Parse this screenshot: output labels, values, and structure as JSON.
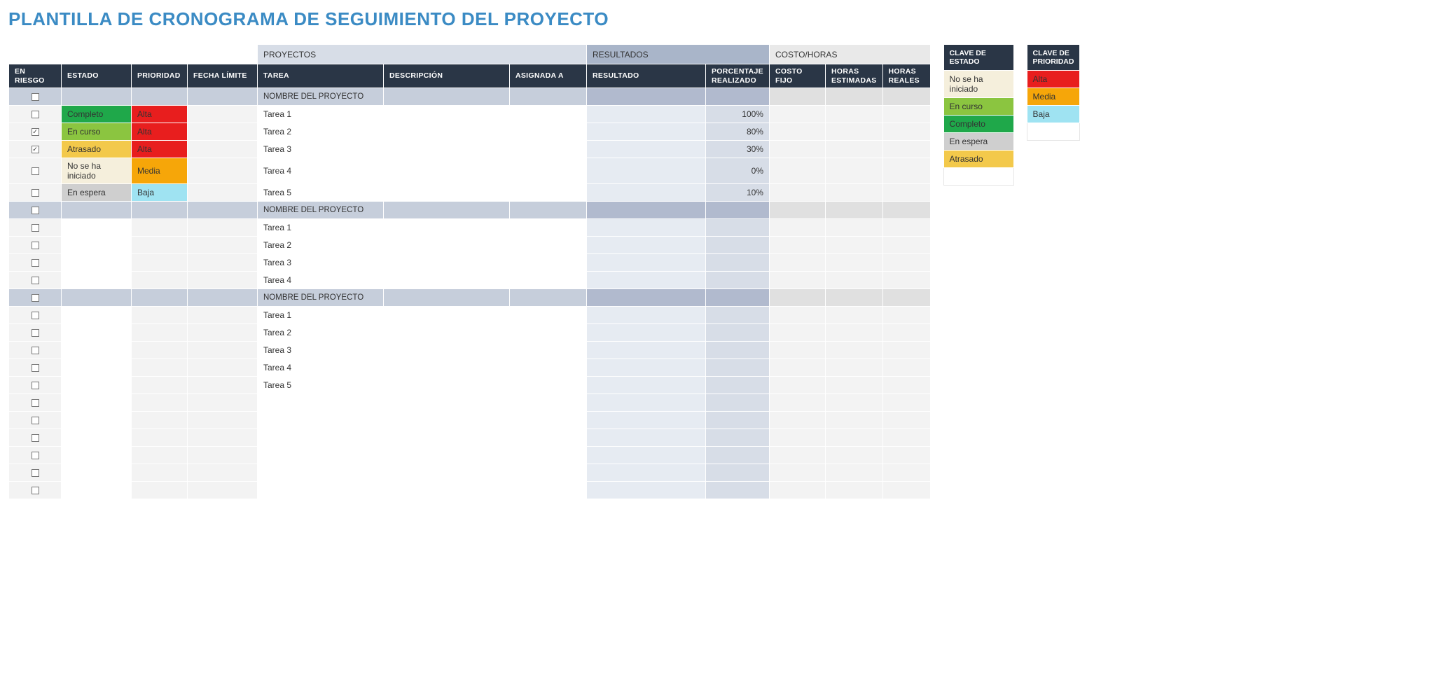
{
  "title": "PLANTILLA DE CRONOGRAMA DE SEGUIMIENTO DEL PROYECTO",
  "sections": {
    "projects": "PROYECTOS",
    "results": "RESULTADOS",
    "cost": "COSTO/HORAS"
  },
  "columns": {
    "risk": "EN RIESGO",
    "status": "ESTADO",
    "priority": "PRIORIDAD",
    "deadline": "FECHA LÍMITE",
    "task": "TAREA",
    "description": "DESCRIPCIÓN",
    "assigned": "ASIGNADA A",
    "result": "RESULTADO",
    "pct": "PORCENTAJE REALIZADO",
    "cost": "COSTO FIJO",
    "hest": "HORAS ESTIMADAS",
    "hreal": "HORAS REALES"
  },
  "status_colors": {
    "Completo": "#1fa84a",
    "En curso": "#8bc540",
    "Atrasado": "#f3c94b",
    "No se ha iniciado": "#f5efdc",
    "En espera": "#cfcfcf"
  },
  "priority_colors": {
    "Alta": "#e81e1e",
    "Media": "#f6a609",
    "Baja": "#9fe3f2"
  },
  "rows": [
    {
      "type": "group",
      "task": "NOMBRE DEL PROYECTO",
      "checked": false
    },
    {
      "type": "body",
      "checked": false,
      "status": "Completo",
      "priority": "Alta",
      "task": "Tarea 1",
      "pct": "100%"
    },
    {
      "type": "body",
      "checked": true,
      "status": "En curso",
      "priority": "Alta",
      "task": "Tarea 2",
      "pct": "80%"
    },
    {
      "type": "body",
      "checked": true,
      "status": "Atrasado",
      "priority": "Alta",
      "task": "Tarea 3",
      "pct": "30%"
    },
    {
      "type": "body",
      "checked": false,
      "status": "No se ha iniciado",
      "priority": "Media",
      "task": "Tarea 4",
      "pct": "0%"
    },
    {
      "type": "body",
      "checked": false,
      "status": "En espera",
      "priority": "Baja",
      "task": "Tarea 5",
      "pct": "10%"
    },
    {
      "type": "group",
      "task": "NOMBRE DEL PROYECTO",
      "checked": false
    },
    {
      "type": "body",
      "checked": false,
      "task": "Tarea 1"
    },
    {
      "type": "body",
      "checked": false,
      "task": "Tarea 2"
    },
    {
      "type": "body",
      "checked": false,
      "task": "Tarea 3"
    },
    {
      "type": "body",
      "checked": false,
      "task": "Tarea 4"
    },
    {
      "type": "group",
      "task": "NOMBRE DEL PROYECTO",
      "checked": false
    },
    {
      "type": "body",
      "checked": false,
      "task": "Tarea 1"
    },
    {
      "type": "body",
      "checked": false,
      "task": "Tarea 2"
    },
    {
      "type": "body",
      "checked": false,
      "task": "Tarea 3"
    },
    {
      "type": "body",
      "checked": false,
      "task": "Tarea 4"
    },
    {
      "type": "body",
      "checked": false,
      "task": "Tarea 5"
    },
    {
      "type": "body",
      "checked": false
    },
    {
      "type": "body",
      "checked": false
    },
    {
      "type": "body",
      "checked": false
    },
    {
      "type": "body",
      "checked": false
    },
    {
      "type": "body",
      "checked": false
    },
    {
      "type": "body",
      "checked": false
    }
  ],
  "legend_status": {
    "title": "CLAVE DE ESTADO",
    "items": [
      {
        "label": "No se ha iniciado",
        "color": "#f5efdc"
      },
      {
        "label": "En curso",
        "color": "#8bc540"
      },
      {
        "label": "Completo",
        "color": "#1fa84a"
      },
      {
        "label": "En espera",
        "color": "#cfcfcf"
      },
      {
        "label": "Atrasado",
        "color": "#f3c94b"
      }
    ],
    "blank_rows": 1
  },
  "legend_priority": {
    "title": "CLAVE DE PRIORIDAD",
    "items": [
      {
        "label": "Alta",
        "color": "#e81e1e"
      },
      {
        "label": "Media",
        "color": "#f6a609"
      },
      {
        "label": "Baja",
        "color": "#9fe3f2"
      }
    ],
    "blank_rows": 1
  }
}
